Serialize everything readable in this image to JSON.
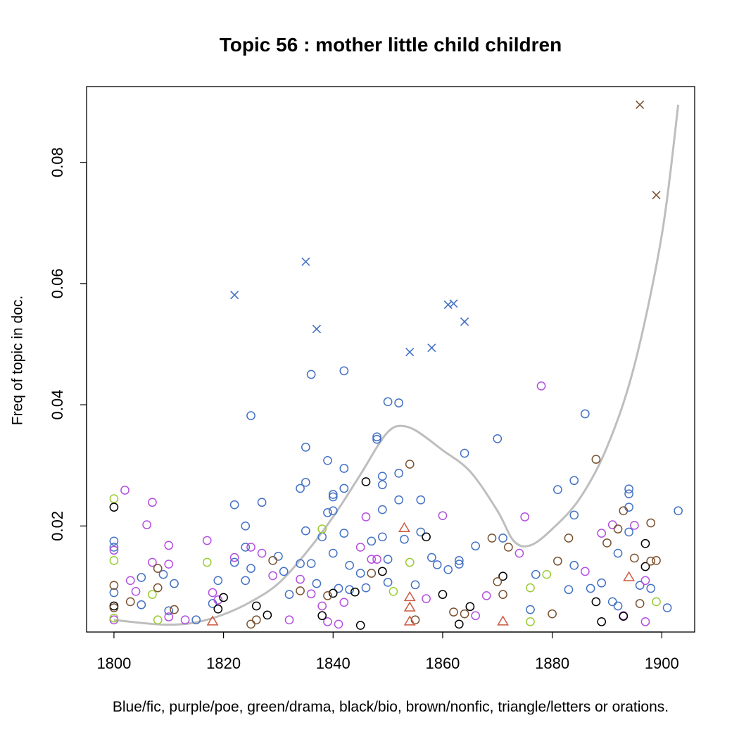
{
  "chart_data": {
    "type": "scatter",
    "title": "Topic 56 : mother little child children",
    "xlabel": "Blue/fic, purple/poe, green/drama, black/bio, brown/nonfic, triangle/letters or orations.",
    "ylabel": "Freq of topic in doc.",
    "xlim": [
      1795,
      1906
    ],
    "ylim": [
      0.0025,
      0.0925
    ],
    "x_ticks": [
      1800,
      1820,
      1840,
      1860,
      1880,
      1900
    ],
    "x_tick_labels": [
      "1800",
      "1820",
      "1840",
      "1860",
      "1880",
      "1900"
    ],
    "y_ticks": [
      0.02,
      0.04,
      0.06,
      0.08
    ],
    "y_tick_labels": [
      "0.02",
      "0.04",
      "0.06",
      "0.08"
    ],
    "colors": {
      "fic": "#4472c4",
      "poe": "#b44fe0",
      "drama": "#9acd32",
      "bio": "#000000",
      "nonfic": "#7a5230",
      "letters": "#cc5a40",
      "smooth": "#bebebe"
    },
    "smooth_line": {
      "x": [
        1800,
        1805,
        1810,
        1815,
        1820,
        1825,
        1830,
        1835,
        1840,
        1845,
        1848,
        1850,
        1852,
        1855,
        1860,
        1865,
        1870,
        1873,
        1876,
        1880,
        1885,
        1890,
        1895,
        1900,
        1903
      ],
      "y": [
        0.0045,
        0.004,
        0.0037,
        0.0041,
        0.0054,
        0.0075,
        0.0105,
        0.0155,
        0.0215,
        0.0285,
        0.033,
        0.0355,
        0.0365,
        0.0358,
        0.0325,
        0.029,
        0.0225,
        0.0175,
        0.0168,
        0.0195,
        0.0245,
        0.033,
        0.0465,
        0.068,
        0.0895
      ]
    },
    "series": [
      {
        "name": "fiction",
        "genre": "fic",
        "marker": "circle",
        "points": [
          [
            1800,
            0.0175
          ],
          [
            1800,
            0.0165
          ],
          [
            1800,
            0.009
          ],
          [
            1805,
            0.0115
          ],
          [
            1805,
            0.007
          ],
          [
            1809,
            0.012
          ],
          [
            1810,
            0.006
          ],
          [
            1811,
            0.0105
          ],
          [
            1815,
            0.0045
          ],
          [
            1818,
            0.0072
          ],
          [
            1819,
            0.011
          ],
          [
            1822,
            0.0235
          ],
          [
            1822,
            0.014
          ],
          [
            1824,
            0.02
          ],
          [
            1824,
            0.0165
          ],
          [
            1824,
            0.011
          ],
          [
            1825,
            0.0382
          ],
          [
            1825,
            0.013
          ],
          [
            1827,
            0.0239
          ],
          [
            1830,
            0.015
          ],
          [
            1831,
            0.0125
          ],
          [
            1832,
            0.0087
          ],
          [
            1834,
            0.0262
          ],
          [
            1834,
            0.0138
          ],
          [
            1835,
            0.033
          ],
          [
            1835,
            0.0272
          ],
          [
            1835,
            0.0192
          ],
          [
            1836,
            0.045
          ],
          [
            1836,
            0.0138
          ],
          [
            1837,
            0.0105
          ],
          [
            1838,
            0.0182
          ],
          [
            1839,
            0.0308
          ],
          [
            1839,
            0.0222
          ],
          [
            1840,
            0.0252
          ],
          [
            1840,
            0.0248
          ],
          [
            1840,
            0.0225
          ],
          [
            1840,
            0.0155
          ],
          [
            1841,
            0.0097
          ],
          [
            1842,
            0.0456
          ],
          [
            1842,
            0.0295
          ],
          [
            1842,
            0.0262
          ],
          [
            1842,
            0.0188
          ],
          [
            1843,
            0.0135
          ],
          [
            1843,
            0.0095
          ],
          [
            1845,
            0.0122
          ],
          [
            1846,
            0.0098
          ],
          [
            1847,
            0.0175
          ],
          [
            1848,
            0.0347
          ],
          [
            1848,
            0.0343
          ],
          [
            1849,
            0.0282
          ],
          [
            1849,
            0.0268
          ],
          [
            1849,
            0.0227
          ],
          [
            1849,
            0.0182
          ],
          [
            1850,
            0.0405
          ],
          [
            1850,
            0.0145
          ],
          [
            1850,
            0.0107
          ],
          [
            1852,
            0.0403
          ],
          [
            1852,
            0.0287
          ],
          [
            1852,
            0.0243
          ],
          [
            1853,
            0.0178
          ],
          [
            1855,
            0.0103
          ],
          [
            1856,
            0.0243
          ],
          [
            1856,
            0.019
          ],
          [
            1858,
            0.0148
          ],
          [
            1859,
            0.0136
          ],
          [
            1861,
            0.0128
          ],
          [
            1863,
            0.0143
          ],
          [
            1863,
            0.0137
          ],
          [
            1864,
            0.032
          ],
          [
            1866,
            0.0167
          ],
          [
            1870,
            0.0344
          ],
          [
            1871,
            0.018
          ],
          [
            1876,
            0.0062
          ],
          [
            1877,
            0.012
          ],
          [
            1881,
            0.026
          ],
          [
            1883,
            0.0095
          ],
          [
            1884,
            0.0275
          ],
          [
            1884,
            0.0218
          ],
          [
            1884,
            0.0135
          ],
          [
            1886,
            0.0385
          ],
          [
            1887,
            0.0097
          ],
          [
            1889,
            0.0106
          ],
          [
            1891,
            0.0075
          ],
          [
            1892,
            0.0155
          ],
          [
            1892,
            0.0068
          ],
          [
            1894,
            0.0261
          ],
          [
            1894,
            0.0253
          ],
          [
            1894,
            0.0231
          ],
          [
            1894,
            0.019
          ],
          [
            1896,
            0.0102
          ],
          [
            1898,
            0.0097
          ],
          [
            1901,
            0.0065
          ],
          [
            1903,
            0.0225
          ]
        ]
      },
      {
        "name": "fiction (extreme)",
        "genre": "fic",
        "marker": "x",
        "points": [
          [
            1822,
            0.0581
          ],
          [
            1835,
            0.0636
          ],
          [
            1837,
            0.0525
          ],
          [
            1854,
            0.0487
          ],
          [
            1858,
            0.0494
          ],
          [
            1861,
            0.0565
          ],
          [
            1862,
            0.0567
          ],
          [
            1864,
            0.0537
          ]
        ]
      },
      {
        "name": "poetry",
        "genre": "poe",
        "marker": "circle",
        "points": [
          [
            1800,
            0.016
          ],
          [
            1800,
            0.0045
          ],
          [
            1802,
            0.0259
          ],
          [
            1803,
            0.011
          ],
          [
            1804,
            0.0092
          ],
          [
            1806,
            0.0202
          ],
          [
            1807,
            0.0239
          ],
          [
            1807,
            0.014
          ],
          [
            1810,
            0.0168
          ],
          [
            1810,
            0.0137
          ],
          [
            1810,
            0.005
          ],
          [
            1813,
            0.0045
          ],
          [
            1817,
            0.0176
          ],
          [
            1818,
            0.009
          ],
          [
            1819,
            0.0078
          ],
          [
            1822,
            0.0148
          ],
          [
            1825,
            0.0165
          ],
          [
            1827,
            0.0155
          ],
          [
            1829,
            0.0118
          ],
          [
            1832,
            0.0045
          ],
          [
            1834,
            0.0112
          ],
          [
            1836,
            0.0088
          ],
          [
            1838,
            0.0068
          ],
          [
            1839,
            0.0042
          ],
          [
            1841,
            0.0038
          ],
          [
            1842,
            0.0074
          ],
          [
            1845,
            0.0165
          ],
          [
            1846,
            0.0215
          ],
          [
            1847,
            0.0145
          ],
          [
            1848,
            0.0145
          ],
          [
            1857,
            0.008
          ],
          [
            1860,
            0.0217
          ],
          [
            1866,
            0.0052
          ],
          [
            1868,
            0.0085
          ],
          [
            1874,
            0.0155
          ],
          [
            1875,
            0.0215
          ],
          [
            1878,
            0.0431
          ],
          [
            1886,
            0.0125
          ],
          [
            1889,
            0.0188
          ],
          [
            1891,
            0.0202
          ],
          [
            1893,
            0.0052
          ],
          [
            1895,
            0.0201
          ],
          [
            1897,
            0.011
          ],
          [
            1897,
            0.0042
          ]
        ]
      },
      {
        "name": "drama",
        "genre": "drama",
        "marker": "circle",
        "points": [
          [
            1800,
            0.0245
          ],
          [
            1800,
            0.0143
          ],
          [
            1800,
            0.0048
          ],
          [
            1807,
            0.0087
          ],
          [
            1808,
            0.0045
          ],
          [
            1817,
            0.014
          ],
          [
            1838,
            0.0195
          ],
          [
            1851,
            0.0092
          ],
          [
            1854,
            0.014
          ],
          [
            1876,
            0.0098
          ],
          [
            1876,
            0.0042
          ],
          [
            1879,
            0.012
          ],
          [
            1899,
            0.0075
          ]
        ]
      },
      {
        "name": "biography",
        "genre": "bio",
        "marker": "circle",
        "points": [
          [
            1800,
            0.0231
          ],
          [
            1800,
            0.0068
          ],
          [
            1819,
            0.0063
          ],
          [
            1820,
            0.0082
          ],
          [
            1826,
            0.0068
          ],
          [
            1828,
            0.0053
          ],
          [
            1838,
            0.0052
          ],
          [
            1840,
            0.0089
          ],
          [
            1844,
            0.0091
          ],
          [
            1845,
            0.0036
          ],
          [
            1846,
            0.0273
          ],
          [
            1849,
            0.0125
          ],
          [
            1857,
            0.0182
          ],
          [
            1860,
            0.0087
          ],
          [
            1863,
            0.0038
          ],
          [
            1865,
            0.0067
          ],
          [
            1871,
            0.0117
          ],
          [
            1888,
            0.0075
          ],
          [
            1889,
            0.0042
          ],
          [
            1893,
            0.0051
          ],
          [
            1897,
            0.0171
          ],
          [
            1897,
            0.0133
          ]
        ]
      },
      {
        "name": "nonfiction",
        "genre": "nonfic",
        "marker": "circle",
        "points": [
          [
            1800,
            0.0102
          ],
          [
            1800,
            0.0065
          ],
          [
            1803,
            0.0075
          ],
          [
            1808,
            0.013
          ],
          [
            1808,
            0.0098
          ],
          [
            1811,
            0.0062
          ],
          [
            1825,
            0.0038
          ],
          [
            1826,
            0.0045
          ],
          [
            1829,
            0.0143
          ],
          [
            1834,
            0.0093
          ],
          [
            1839,
            0.0085
          ],
          [
            1847,
            0.0122
          ],
          [
            1854,
            0.0302
          ],
          [
            1855,
            0.0045
          ],
          [
            1862,
            0.0058
          ],
          [
            1864,
            0.0055
          ],
          [
            1869,
            0.018
          ],
          [
            1870,
            0.0108
          ],
          [
            1871,
            0.0087
          ],
          [
            1872,
            0.0165
          ],
          [
            1880,
            0.0055
          ],
          [
            1881,
            0.0142
          ],
          [
            1883,
            0.018
          ],
          [
            1888,
            0.031
          ],
          [
            1890,
            0.0172
          ],
          [
            1892,
            0.0195
          ],
          [
            1893,
            0.0225
          ],
          [
            1895,
            0.0147
          ],
          [
            1896,
            0.0072
          ],
          [
            1898,
            0.0205
          ],
          [
            1898,
            0.0142
          ],
          [
            1899,
            0.0143
          ]
        ]
      },
      {
        "name": "nonfiction (extreme)",
        "genre": "nonfic",
        "marker": "x",
        "points": [
          [
            1896,
            0.0895
          ],
          [
            1899,
            0.0746
          ]
        ]
      },
      {
        "name": "letters or orations",
        "genre": "letters",
        "marker": "triangle",
        "points": [
          [
            1818,
            0.0042
          ],
          [
            1853,
            0.0196
          ],
          [
            1854,
            0.0082
          ],
          [
            1854,
            0.0065
          ],
          [
            1854,
            0.0042
          ],
          [
            1871,
            0.0042
          ],
          [
            1894,
            0.0115
          ]
        ]
      }
    ]
  }
}
